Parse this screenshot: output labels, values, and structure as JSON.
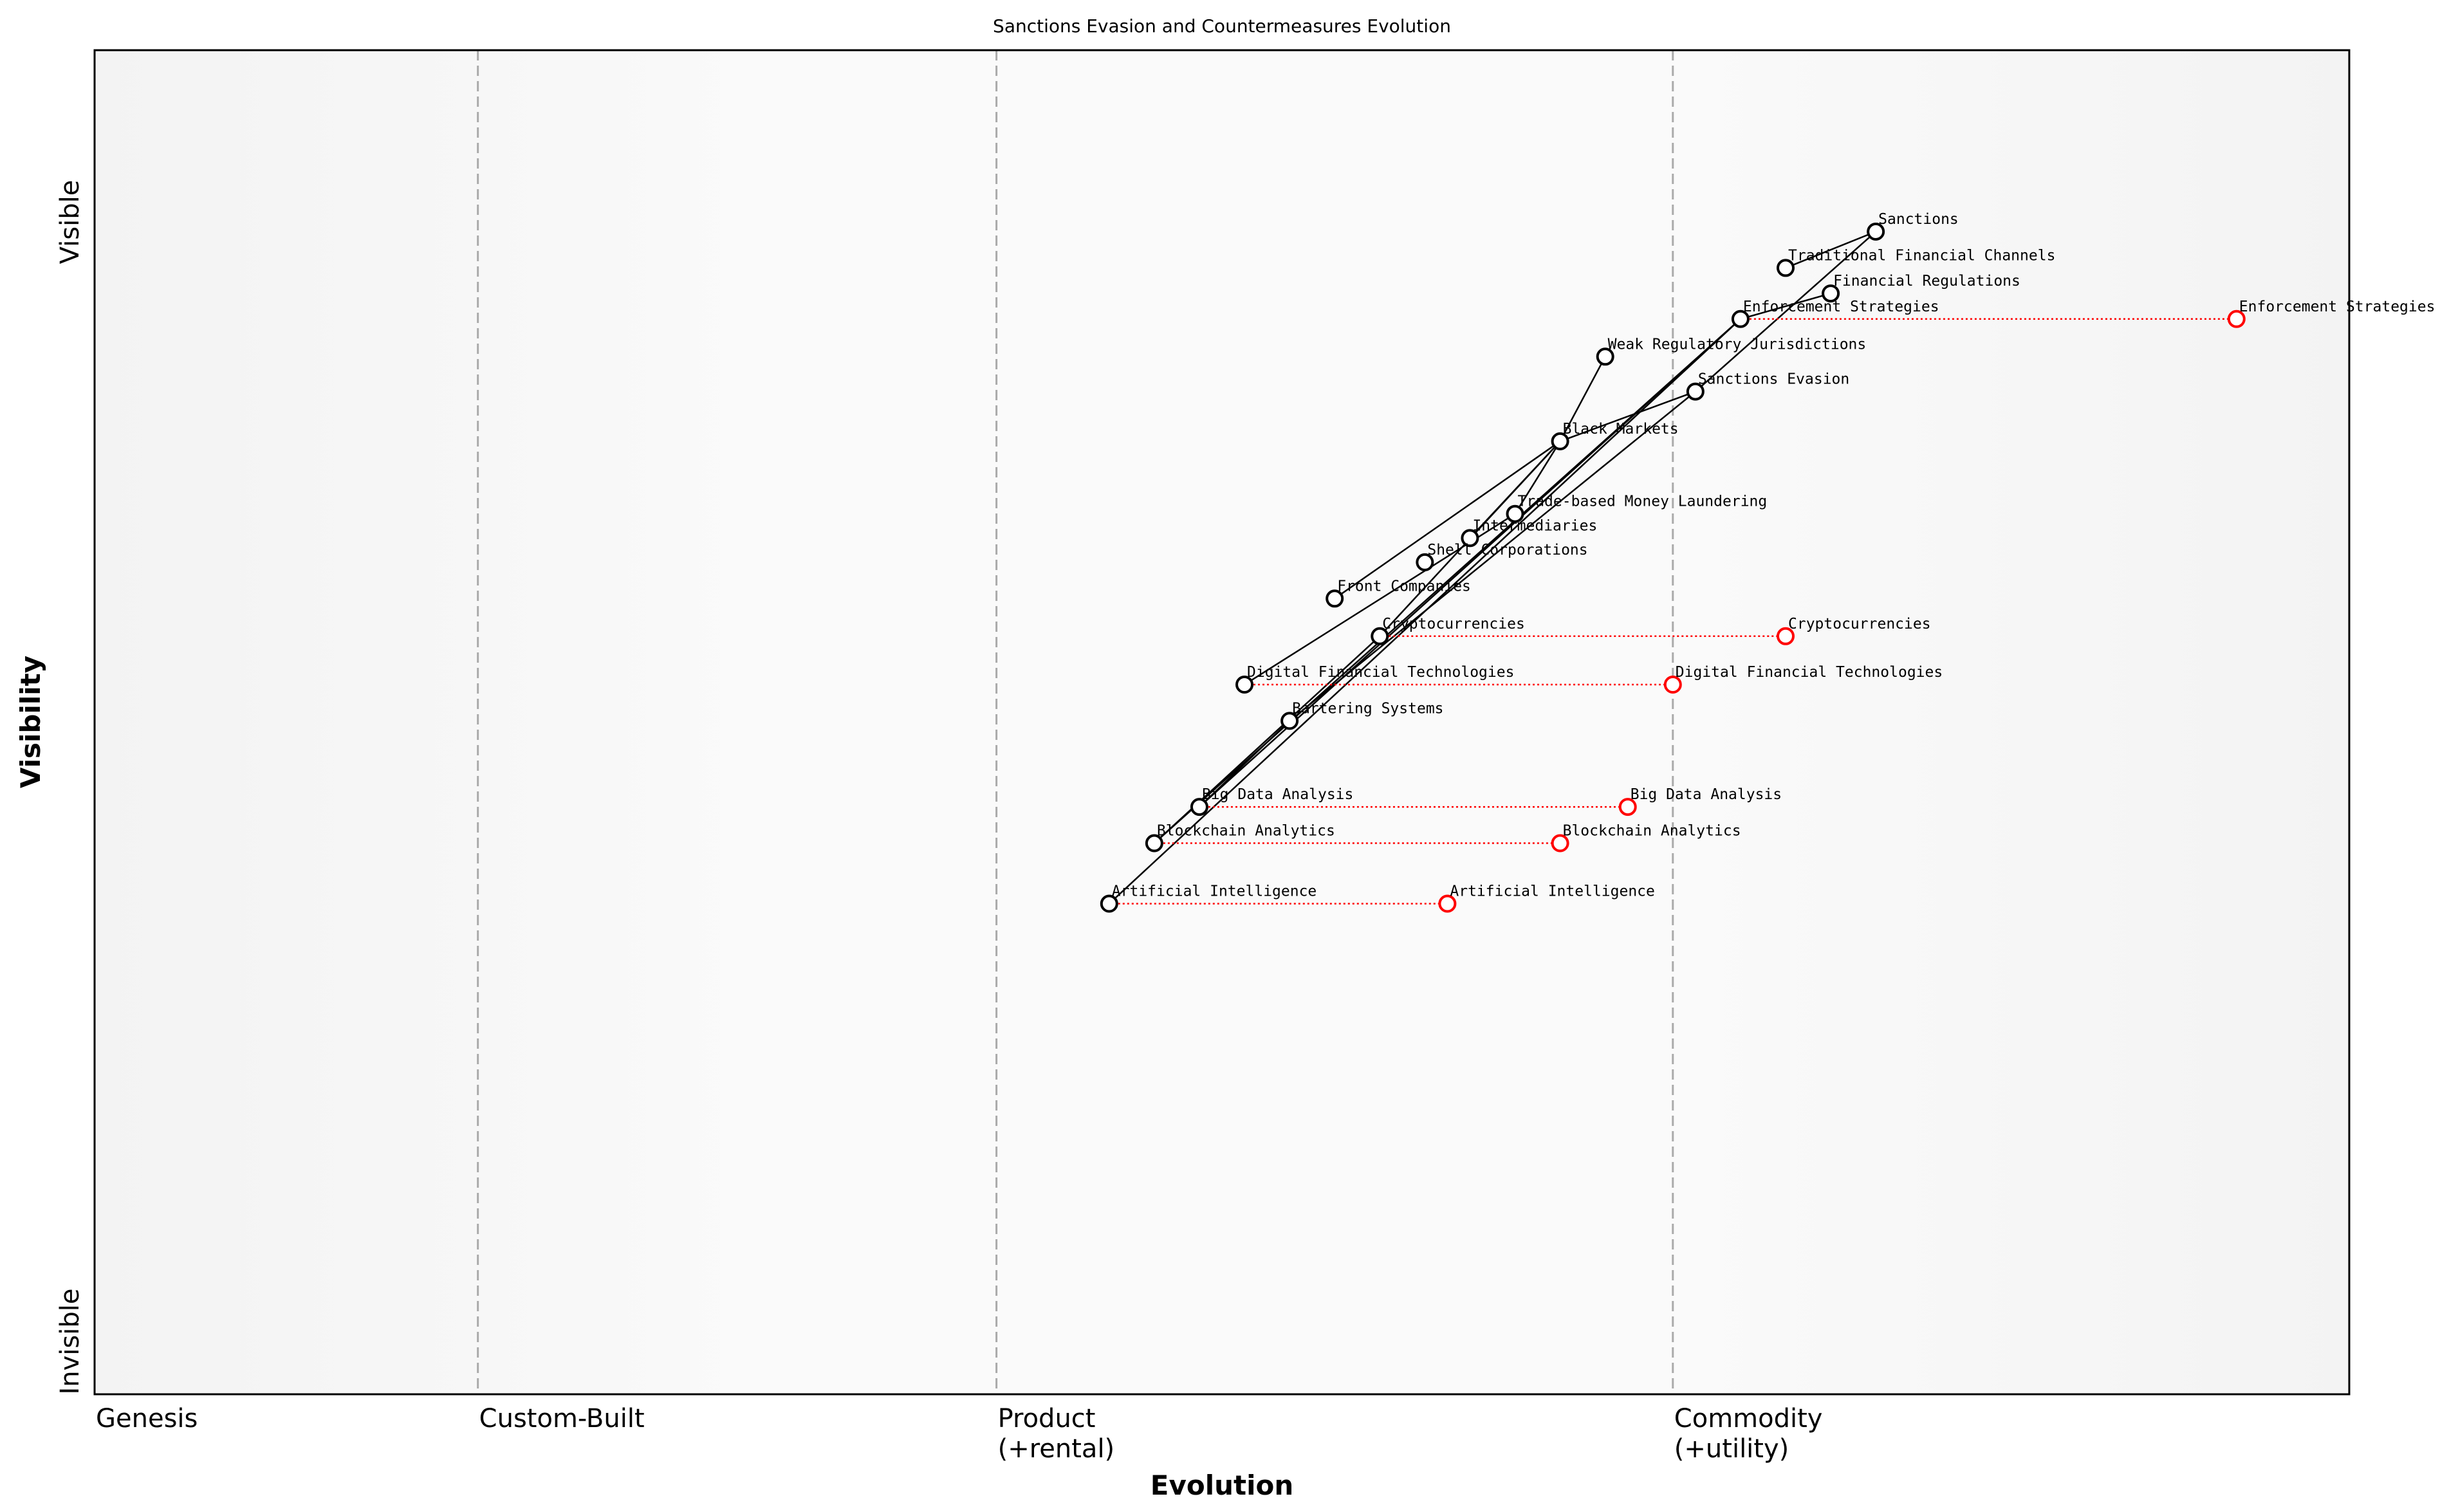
{
  "title": "Sanctions Evasion and Countermeasures Evolution",
  "x_axis": {
    "title": "Evolution",
    "stages": [
      {
        "label_line1": "Genesis",
        "label_line2": "",
        "position": 0.0
      },
      {
        "label_line1": "Custom-Built",
        "label_line2": "",
        "position": 0.17
      },
      {
        "label_line1": "Product",
        "label_line2": "(+rental)",
        "position": 0.4
      },
      {
        "label_line1": "Commodity",
        "label_line2": "(+utility)",
        "position": 0.7
      }
    ]
  },
  "y_axis": {
    "title": "Visibility",
    "top_label": "Visible",
    "bottom_label": "Invisible"
  },
  "colors": {
    "node": "#000000",
    "evolved_node": "#ff0000",
    "edge": "#000000",
    "evolution_arrow": "#ff0000",
    "divider": "#aaaaaa"
  },
  "chart_data": {
    "type": "wardley-map",
    "xlim": [
      0,
      1
    ],
    "ylim": [
      0,
      1
    ],
    "components": [
      {
        "name": "Sanctions",
        "evolution": 0.79,
        "visibility": 0.865
      },
      {
        "name": "Traditional Financial Channels",
        "evolution": 0.75,
        "visibility": 0.838
      },
      {
        "name": "Financial Regulations",
        "evolution": 0.77,
        "visibility": 0.819
      },
      {
        "name": "Enforcement Strategies",
        "evolution": 0.73,
        "visibility": 0.8,
        "evolves_to": 0.95
      },
      {
        "name": "Weak Regulatory Jurisdictions",
        "evolution": 0.67,
        "visibility": 0.772
      },
      {
        "name": "Sanctions Evasion",
        "evolution": 0.71,
        "visibility": 0.746
      },
      {
        "name": "Black Markets",
        "evolution": 0.65,
        "visibility": 0.709
      },
      {
        "name": "Trade-based Money Laundering",
        "evolution": 0.63,
        "visibility": 0.655
      },
      {
        "name": "Intermediaries",
        "evolution": 0.61,
        "visibility": 0.637
      },
      {
        "name": "Shell Corporations",
        "evolution": 0.59,
        "visibility": 0.619
      },
      {
        "name": "Front Companies",
        "evolution": 0.55,
        "visibility": 0.592
      },
      {
        "name": "Cryptocurrencies",
        "evolution": 0.57,
        "visibility": 0.564,
        "evolves_to": 0.75
      },
      {
        "name": "Digital Financial Technologies",
        "evolution": 0.51,
        "visibility": 0.528,
        "evolves_to": 0.7
      },
      {
        "name": "Bartering Systems",
        "evolution": 0.53,
        "visibility": 0.501
      },
      {
        "name": "Big Data Analysis",
        "evolution": 0.49,
        "visibility": 0.437,
        "evolves_to": 0.68
      },
      {
        "name": "Blockchain Analytics",
        "evolution": 0.47,
        "visibility": 0.41,
        "evolves_to": 0.65
      },
      {
        "name": "Artificial Intelligence",
        "evolution": 0.45,
        "visibility": 0.365,
        "evolves_to": 0.6
      }
    ],
    "links": [
      [
        "Sanctions",
        "Traditional Financial Channels"
      ],
      [
        "Sanctions",
        "Sanctions Evasion"
      ],
      [
        "Financial Regulations",
        "Enforcement Strategies"
      ],
      [
        "Enforcement Strategies",
        "Artificial Intelligence"
      ],
      [
        "Enforcement Strategies",
        "Big Data Analysis"
      ],
      [
        "Enforcement Strategies",
        "Blockchain Analytics"
      ],
      [
        "Sanctions Evasion",
        "Black Markets"
      ],
      [
        "Sanctions Evasion",
        "Bartering Systems"
      ],
      [
        "Black Markets",
        "Weak Regulatory Jurisdictions"
      ],
      [
        "Black Markets",
        "Front Companies"
      ],
      [
        "Black Markets",
        "Intermediaries"
      ],
      [
        "Black Markets",
        "Trade-based Money Laundering"
      ],
      [
        "Black Markets",
        "Cryptocurrencies"
      ],
      [
        "Trade-based Money Laundering",
        "Digital Financial Technologies"
      ],
      [
        "Cryptocurrencies",
        "Blockchain Analytics"
      ],
      [
        "Bartering Systems",
        "Big Data Analysis"
      ]
    ]
  }
}
